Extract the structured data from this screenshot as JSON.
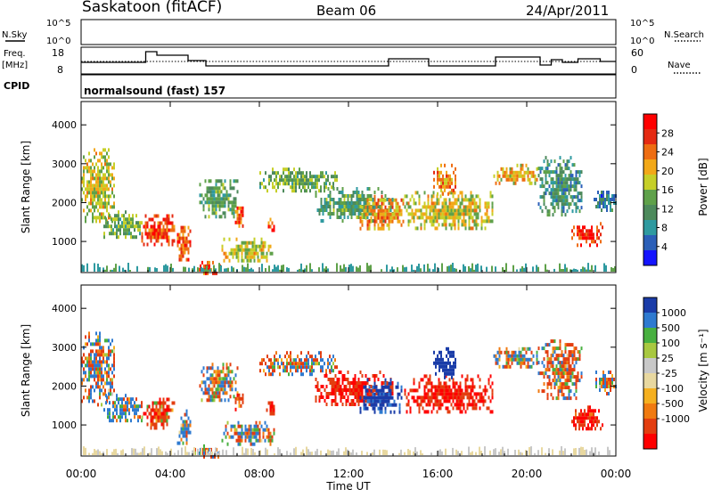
{
  "header": {
    "station": "Saskatoon (fitACF)",
    "beam": "Beam 06",
    "date": "24/Apr/2011"
  },
  "noise_panel": {
    "left_label": "N.Sky",
    "right_label": "N.Search",
    "left_ticks": [
      "10^5",
      "10^0"
    ],
    "right_ticks": [
      "10^5",
      "10^0"
    ]
  },
  "freq_panel": {
    "left_label_line1": "Freq.",
    "left_label_line2": "[MHz]",
    "right_label": "Nave",
    "left_ticks": [
      "18",
      "8"
    ],
    "right_ticks": [
      "60",
      "0"
    ]
  },
  "cpid_panel": {
    "label": "CPID",
    "value": "normalsound (fast) 157"
  },
  "colors": {
    "power_scale": [
      "#1414ff",
      "#2b5fb8",
      "#2f9aa0",
      "#4d8a5c",
      "#5fa14a",
      "#c6cf28",
      "#f2a818",
      "#ee6d12",
      "#e52a12",
      "#ff0000"
    ],
    "velocity_scale": [
      "#ff0000",
      "#e33e10",
      "#f07a10",
      "#f5b020",
      "#e8d8a0",
      "#c8c8c8",
      "#a8c840",
      "#48b040",
      "#2e7ad0",
      "#1a3ca8"
    ]
  },
  "chart_data": [
    {
      "type": "heatmap",
      "name": "power",
      "xlabel": "",
      "ylabel": "Slant Range [km]",
      "x_range_hours": [
        0,
        24
      ],
      "ylim": [
        200,
        4600
      ],
      "yticks": [
        "1000",
        "2000",
        "3000",
        "4000"
      ],
      "colorbar": {
        "label": "Power [dB]",
        "ticks": [
          "4",
          "8",
          "12",
          "16",
          "20",
          "24",
          "28"
        ],
        "range": [
          0,
          32
        ]
      },
      "blobs": [
        {
          "t0": 0.0,
          "t1": 1.5,
          "r0": 1500,
          "r1": 3400,
          "v": 18
        },
        {
          "t0": 1.0,
          "t1": 2.7,
          "r0": 1100,
          "r1": 1800,
          "v": 14
        },
        {
          "t0": 2.7,
          "t1": 4.2,
          "r0": 900,
          "r1": 1700,
          "v": 26
        },
        {
          "t0": 4.3,
          "t1": 4.9,
          "r0": 500,
          "r1": 1400,
          "v": 25
        },
        {
          "t0": 5.0,
          "t1": 6.2,
          "r0": 200,
          "r1": 500,
          "v": 26
        },
        {
          "t0": 5.3,
          "t1": 7.0,
          "r0": 1600,
          "r1": 2600,
          "v": 12
        },
        {
          "t0": 6.3,
          "t1": 8.7,
          "r0": 500,
          "r1": 1100,
          "v": 18
        },
        {
          "t0": 6.9,
          "t1": 7.3,
          "r0": 1400,
          "r1": 1900,
          "v": 27
        },
        {
          "t0": 8.3,
          "t1": 8.7,
          "r0": 1300,
          "r1": 1700,
          "v": 26
        },
        {
          "t0": 8.0,
          "t1": 11.5,
          "r0": 2300,
          "r1": 2900,
          "v": 14
        },
        {
          "t0": 10.5,
          "t1": 14.0,
          "r0": 1500,
          "r1": 2400,
          "v": 12
        },
        {
          "t0": 12.5,
          "t1": 14.5,
          "r0": 1300,
          "r1": 2200,
          "v": 22
        },
        {
          "t0": 14.5,
          "t1": 18.5,
          "r0": 1300,
          "r1": 2300,
          "v": 18
        },
        {
          "t0": 15.8,
          "t1": 16.8,
          "r0": 2200,
          "r1": 3000,
          "v": 22
        },
        {
          "t0": 18.5,
          "t1": 20.5,
          "r0": 2500,
          "r1": 3000,
          "v": 20
        },
        {
          "t0": 20.5,
          "t1": 22.5,
          "r0": 1700,
          "r1": 3200,
          "v": 10
        },
        {
          "t0": 22.0,
          "t1": 23.4,
          "r0": 900,
          "r1": 1500,
          "v": 28
        },
        {
          "t0": 23.0,
          "t1": 24.0,
          "r0": 1800,
          "r1": 2400,
          "v": 8
        }
      ]
    },
    {
      "type": "heatmap",
      "name": "velocity",
      "xlabel": "Time UT",
      "ylabel": "Slant Range [km]",
      "x_range_hours": [
        0,
        24
      ],
      "xticks": [
        "00:00",
        "04:00",
        "08:00",
        "12:00",
        "16:00",
        "20:00",
        "00:00"
      ],
      "ylim": [
        200,
        4600
      ],
      "yticks": [
        "1000",
        "2000",
        "3000",
        "4000"
      ],
      "colorbar": {
        "label": "Velocity [m s⁻¹]",
        "ticks": [
          "1000",
          "500",
          "100",
          "25",
          "-25",
          "-100",
          "-500",
          "-1000"
        ],
        "range": [
          -1200,
          1200
        ]
      },
      "blobs": [
        {
          "t0": 0.0,
          "t1": 1.5,
          "r0": 1500,
          "r1": 3400,
          "v": 0
        },
        {
          "t0": 1.0,
          "t1": 2.7,
          "r0": 1100,
          "r1": 1800,
          "v": 60
        },
        {
          "t0": 2.7,
          "t1": 4.2,
          "r0": 900,
          "r1": 1700,
          "v": -150
        },
        {
          "t0": 4.3,
          "t1": 4.9,
          "r0": 500,
          "r1": 1400,
          "v": 80
        },
        {
          "t0": 5.0,
          "t1": 6.2,
          "r0": 200,
          "r1": 500,
          "v": -40
        },
        {
          "t0": 5.3,
          "t1": 7.0,
          "r0": 1600,
          "r1": 2600,
          "v": 0
        },
        {
          "t0": 6.3,
          "t1": 8.7,
          "r0": 500,
          "r1": 1100,
          "v": 0
        },
        {
          "t0": 6.9,
          "t1": 7.3,
          "r0": 1400,
          "r1": 1900,
          "v": -200
        },
        {
          "t0": 8.3,
          "t1": 8.7,
          "r0": 1300,
          "r1": 1700,
          "v": -300
        },
        {
          "t0": 8.0,
          "t1": 11.5,
          "r0": 2300,
          "r1": 2900,
          "v": 0
        },
        {
          "t0": 10.5,
          "t1": 14.0,
          "r0": 1500,
          "r1": 2400,
          "v": -300
        },
        {
          "t0": 12.5,
          "t1": 14.5,
          "r0": 1300,
          "r1": 2200,
          "v": 400
        },
        {
          "t0": 14.5,
          "t1": 18.5,
          "r0": 1300,
          "r1": 2300,
          "v": -300
        },
        {
          "t0": 15.8,
          "t1": 16.8,
          "r0": 2200,
          "r1": 3000,
          "v": 600
        },
        {
          "t0": 18.5,
          "t1": 20.5,
          "r0": 2500,
          "r1": 3000,
          "v": 0
        },
        {
          "t0": 20.5,
          "t1": 22.5,
          "r0": 1700,
          "r1": 3200,
          "v": -60
        },
        {
          "t0": 22.0,
          "t1": 23.4,
          "r0": 900,
          "r1": 1500,
          "v": -250
        },
        {
          "t0": 23.0,
          "t1": 24.0,
          "r0": 1800,
          "r1": 2400,
          "v": 0
        }
      ]
    }
  ]
}
